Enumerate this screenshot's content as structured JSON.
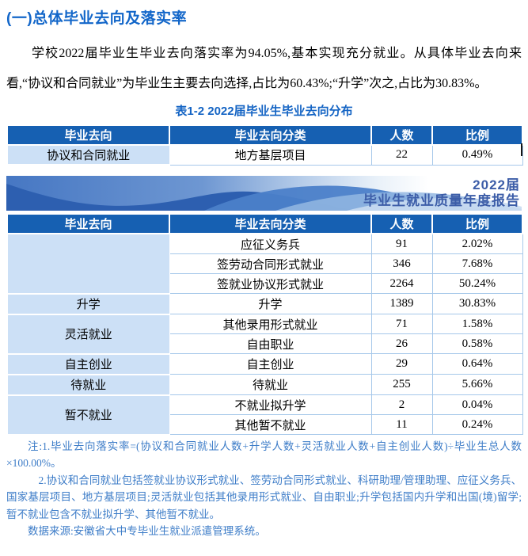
{
  "page": {
    "heading": "(一)总体毕业去向及落实率",
    "paragraph": "学校2022届毕业生毕业去向落实率为94.05%,基本实现充分就业。从具体毕业去向来看,“协议和合同就业”为毕业生主要去向选择,占比为60.43%;“升学”次之,占比为30.83%。"
  },
  "table1": {
    "caption": "表1-2  2022届毕业生毕业去向分布",
    "headers": [
      "毕业去向",
      "毕业去向分类",
      "人数",
      "比例"
    ],
    "rows": [
      {
        "category": "协议和合同就业",
        "rowspan": 1,
        "type": "地方基层项目",
        "count": "22",
        "ratio": "0.49%"
      }
    ]
  },
  "banner": {
    "line1": "2022届",
    "line2": "毕业生就业质量年度报告"
  },
  "table2": {
    "headers": [
      "毕业去向",
      "毕业去向分类",
      "人数",
      "比例"
    ],
    "rows": [
      {
        "category": "",
        "rowspan": 3,
        "type": "应征义务兵",
        "count": "91",
        "ratio": "2.02%"
      },
      {
        "type": "签劳动合同形式就业",
        "count": "346",
        "ratio": "7.68%"
      },
      {
        "type": "签就业协议形式就业",
        "count": "2264",
        "ratio": "50.24%"
      },
      {
        "category": "升学",
        "rowspan": 1,
        "type": "升学",
        "count": "1389",
        "ratio": "30.83%"
      },
      {
        "category": "灵活就业",
        "rowspan": 2,
        "type": "其他录用形式就业",
        "count": "71",
        "ratio": "1.58%"
      },
      {
        "type": "自由职业",
        "count": "26",
        "ratio": "0.58%"
      },
      {
        "category": "自主创业",
        "rowspan": 1,
        "type": "自主创业",
        "count": "29",
        "ratio": "0.64%"
      },
      {
        "category": "待就业",
        "rowspan": 1,
        "type": "待就业",
        "count": "255",
        "ratio": "5.66%"
      },
      {
        "category": "暂不就业",
        "rowspan": 2,
        "type": "不就业拟升学",
        "count": "2",
        "ratio": "0.04%"
      },
      {
        "type": "其他暂不就业",
        "count": "11",
        "ratio": "0.24%"
      }
    ]
  },
  "notes": {
    "note1": "注:1.毕业去向落实率=(协议和合同就业人数+升学人数+灵活就业人数+自主创业人数)÷毕业生总人数×100.00%。",
    "note2": "2.协议和合同就业包括签就业协议形式就业、签劳动合同形式就业、科研助理/管理助理、应征义务兵、国家基层项目、地方基层项目;灵活就业包括其他录用形式就业、自由职业;升学包括国内升学和出国(境)留学;暂不就业包含不就业拟升学、其他暂不就业。",
    "source": "数据来源:安徽省大中专毕业生就业派遣管理系统。"
  },
  "colors": {
    "accent_heading": "#1266C9",
    "table_header_bg": "#1660B2",
    "category_cell_bg": "#CCE0F6",
    "table_border": "#A6C8EA",
    "notes_text": "#3E7DC8",
    "banner_text": "#3C5DA8"
  }
}
